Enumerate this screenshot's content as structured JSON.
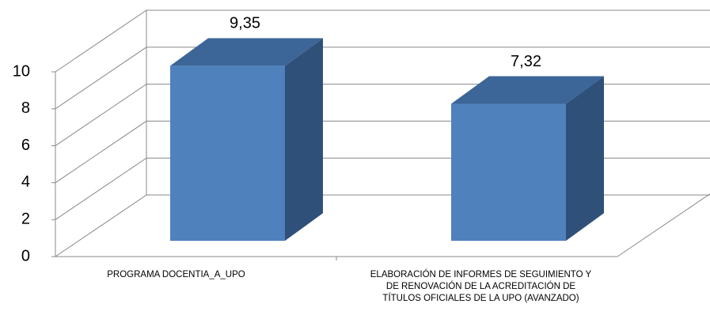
{
  "chart_data": {
    "type": "bar3d",
    "categories": [
      "PROGRAMA DOCENTIA_A_UPO",
      "ELABORACIÓN DE INFORMES DE SEGUIMIENTO Y DE RENOVACIÓN DE LA ACREDITACIÓN DE TÍTULOS OFICIALES DE LA UPO (AVANZADO)"
    ],
    "values": [
      9.35,
      7.32
    ],
    "value_labels": [
      "9,35",
      "7,32"
    ],
    "color": "#4f81bd",
    "ylim": [
      0,
      10
    ],
    "yticks": [
      0,
      2,
      4,
      6,
      8,
      10
    ],
    "grid": true
  }
}
